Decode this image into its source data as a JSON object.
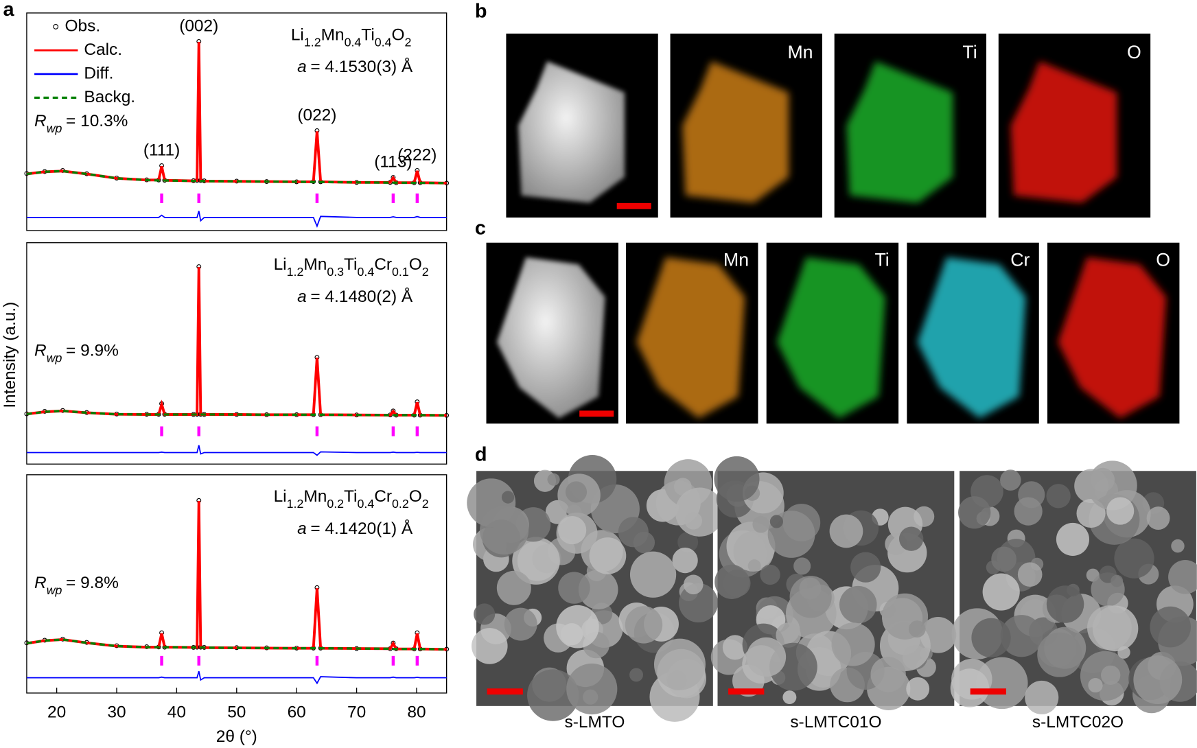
{
  "panel_letters": [
    "a",
    "b",
    "c",
    "d"
  ],
  "chart_data": [
    {
      "type": "line",
      "legend": true,
      "formula": [
        "Li",
        "1.2",
        "Mn",
        "0.4",
        "Ti",
        "0.4",
        "O",
        "2"
      ],
      "lattice": [
        "a",
        "= 4.1530(3) Å"
      ],
      "rwp": [
        "R",
        "wp",
        "= 10.3%"
      ],
      "reflections": [
        37.5,
        43.7,
        63.4,
        76.1,
        80.1
      ],
      "reflection_labels": [
        "(111)",
        "(002)",
        "(022)",
        "(113)",
        "(222)"
      ],
      "reflection_color": "#ff00ff",
      "xlim": [
        15,
        85
      ],
      "ylim": [
        0,
        100
      ],
      "x": [
        15,
        18,
        21,
        25,
        30,
        35,
        37.0,
        37.5,
        38.0,
        42.8,
        43.4,
        43.7,
        44.0,
        44.6,
        50,
        55,
        60,
        62.8,
        63.4,
        64.0,
        70,
        75.6,
        76.1,
        76.6,
        79.6,
        80.1,
        80.6,
        85
      ],
      "series": [
        {
          "name": "Obs.",
          "color": "#000000",
          "marker": "circle",
          "values": [
            26.2,
            27.1,
            27.6,
            26.1,
            24.1,
            23.3,
            23.2,
            29.8,
            23.1,
            22.9,
            23.0,
            86.9,
            23.0,
            22.8,
            22.7,
            22.5,
            22.4,
            22.5,
            45.9,
            22.4,
            22.1,
            22.1,
            24.4,
            22.0,
            22.0,
            27.6,
            22.0,
            21.8
          ]
        },
        {
          "name": "Calc.",
          "color": "#ff0000",
          "values": [
            26,
            27,
            27.3,
            26,
            24,
            23.2,
            23.2,
            29.5,
            23.1,
            22.8,
            23.0,
            86.7,
            23.0,
            22.7,
            22.6,
            22.5,
            22.4,
            22.4,
            45.6,
            22.4,
            22.1,
            22.1,
            24.2,
            22.0,
            22.0,
            27.4,
            22.0,
            21.8
          ]
        },
        {
          "name": "Diff.",
          "color": "#0000ff",
          "values": [
            6,
            6,
            6,
            6,
            6,
            6,
            6,
            7,
            6,
            6,
            6,
            9,
            4.5,
            6,
            6,
            6,
            6,
            6,
            2,
            6.5,
            6,
            6,
            6.3,
            6,
            6,
            6.4,
            6,
            6
          ]
        },
        {
          "name": "Backg.",
          "color": "#008000",
          "dash": true,
          "values": [
            26,
            27,
            27.3,
            26,
            24,
            23.2,
            23,
            23,
            23,
            22.8,
            22.8,
            22.8,
            22.8,
            22.7,
            22.6,
            22.5,
            22.4,
            22.3,
            22.3,
            22.3,
            22.1,
            22,
            22,
            22,
            21.9,
            21.9,
            21.9,
            21.8
          ]
        }
      ]
    },
    {
      "type": "line",
      "legend": false,
      "formula": [
        "Li",
        "1.2",
        "Mn",
        "0.3",
        "Ti",
        "0.4",
        "Cr",
        "0.1",
        "O",
        "2"
      ],
      "lattice": [
        "a",
        "= 4.1480(2) Å"
      ],
      "rwp": [
        "R",
        "wp",
        "= 9.9%"
      ],
      "reflections": [
        37.5,
        43.7,
        63.4,
        76.1,
        80.1
      ],
      "reflection_color": "#ff00ff",
      "xlim": [
        15,
        85
      ],
      "ylim": [
        0,
        100
      ],
      "ylabel": "Intensity (a.u.)",
      "x": [
        15,
        18,
        21,
        25,
        30,
        35,
        37.0,
        37.5,
        38.0,
        42.8,
        43.4,
        43.7,
        44.0,
        44.6,
        50,
        55,
        60,
        62.8,
        63.4,
        64.0,
        70,
        75.6,
        76.1,
        76.6,
        79.6,
        80.1,
        80.6,
        85
      ],
      "series": [
        {
          "color": "#000000",
          "marker": "circle",
          "values": [
            22.7,
            23.8,
            24.2,
            23.3,
            22.6,
            22.5,
            22.5,
            27.3,
            22.5,
            22.4,
            22.5,
            89.2,
            22.5,
            22.4,
            22.4,
            22.3,
            22.3,
            22.3,
            48.2,
            22.3,
            22.2,
            22.2,
            24.0,
            22.1,
            22.1,
            28.1,
            22.1,
            22.0
          ]
        },
        {
          "color": "#ff0000",
          "values": [
            22.6,
            23.6,
            24,
            23.2,
            22.5,
            22.4,
            22.4,
            27,
            22.4,
            22.4,
            22.4,
            89,
            22.4,
            22.4,
            22.4,
            22.3,
            22.3,
            22.3,
            48,
            22.3,
            22.2,
            22.1,
            23.8,
            22.1,
            22.1,
            27.9,
            22.1,
            22.0
          ]
        },
        {
          "color": "#0000ff",
          "values": [
            5.2,
            5.2,
            5.2,
            5.2,
            5.2,
            5.2,
            5.2,
            5.4,
            5.2,
            5.2,
            5.2,
            8.5,
            4.6,
            5.2,
            5.2,
            5.2,
            5.2,
            5.2,
            4,
            5.5,
            5.2,
            5.2,
            5.4,
            5.2,
            5.2,
            5.3,
            5.2,
            5.2
          ]
        },
        {
          "color": "#008000",
          "dash": true,
          "values": [
            22.6,
            23.6,
            24,
            23.2,
            22.5,
            22.4,
            22.4,
            22.4,
            22.4,
            22.4,
            22.4,
            22.4,
            22.4,
            22.4,
            22.4,
            22.3,
            22.3,
            22.3,
            22.3,
            22.3,
            22.2,
            22.1,
            22.1,
            22.1,
            22.1,
            22.1,
            22.1,
            22.0
          ]
        }
      ]
    },
    {
      "type": "line",
      "legend": false,
      "formula": [
        "Li",
        "1.2",
        "Mn",
        "0.2",
        "Ti",
        "0.4",
        "Cr",
        "0.2",
        "O",
        "2"
      ],
      "lattice": [
        "a",
        "= 4.1420(1) Å"
      ],
      "rwp": [
        "R",
        "wp",
        "= 9.8%"
      ],
      "reflections": [
        37.5,
        43.7,
        63.4,
        76.1,
        80.1
      ],
      "reflection_color": "#ff00ff",
      "xlim": [
        15,
        85
      ],
      "ylim": [
        0,
        100
      ],
      "xticks": [
        20,
        30,
        40,
        50,
        60,
        70,
        80
      ],
      "xlabel": "2θ (°)",
      "x": [
        15,
        18,
        21,
        25,
        30,
        35,
        37.0,
        37.5,
        38.0,
        42.8,
        43.4,
        43.7,
        44.0,
        44.6,
        50,
        55,
        60,
        62.8,
        63.4,
        64.0,
        70,
        75.6,
        76.1,
        76.6,
        79.6,
        80.1,
        80.6,
        85
      ],
      "series": [
        {
          "color": "#000000",
          "marker": "circle",
          "values": [
            23.0,
            24.2,
            24.7,
            23.2,
            21.7,
            21.2,
            21.1,
            27.6,
            21.0,
            20.9,
            21.0,
            88.2,
            21.0,
            20.9,
            20.8,
            20.7,
            20.6,
            20.6,
            48.3,
            20.6,
            20.4,
            20.3,
            22.9,
            20.3,
            20.2,
            27.6,
            20.2,
            20.1
          ]
        },
        {
          "color": "#ff0000",
          "values": [
            22.8,
            24,
            24.5,
            23,
            21.5,
            21,
            21,
            27.3,
            21,
            20.9,
            20.9,
            88,
            20.9,
            20.8,
            20.7,
            20.6,
            20.5,
            20.5,
            48,
            20.5,
            20.4,
            20.3,
            22.7,
            20.2,
            20.2,
            27.3,
            20.2,
            20
          ]
        },
        {
          "color": "#0000ff",
          "values": [
            7,
            7,
            7,
            7,
            7,
            7,
            7,
            7.3,
            7,
            7,
            7,
            10,
            6,
            7,
            7,
            7,
            7,
            7,
            4.5,
            7.5,
            7,
            7,
            7.3,
            7,
            7,
            7.2,
            7,
            7
          ]
        },
        {
          "color": "#008000",
          "dash": true,
          "values": [
            22.8,
            24,
            24.5,
            23,
            21.5,
            21,
            21,
            21,
            21,
            20.9,
            20.9,
            20.9,
            20.9,
            20.8,
            20.7,
            20.6,
            20.5,
            20.5,
            20.5,
            20.5,
            20.4,
            20.3,
            20.2,
            20.2,
            20.2,
            20.2,
            20.2,
            20
          ]
        }
      ]
    }
  ],
  "eds_b": {
    "maps": [
      "Mn",
      "Ti",
      "O"
    ]
  },
  "eds_c": {
    "maps": [
      "Mn",
      "Ti",
      "Cr",
      "O"
    ]
  },
  "sem": {
    "captions": [
      "s-LMTO",
      "s-LMTC01O",
      "s-LMTC02O"
    ]
  }
}
